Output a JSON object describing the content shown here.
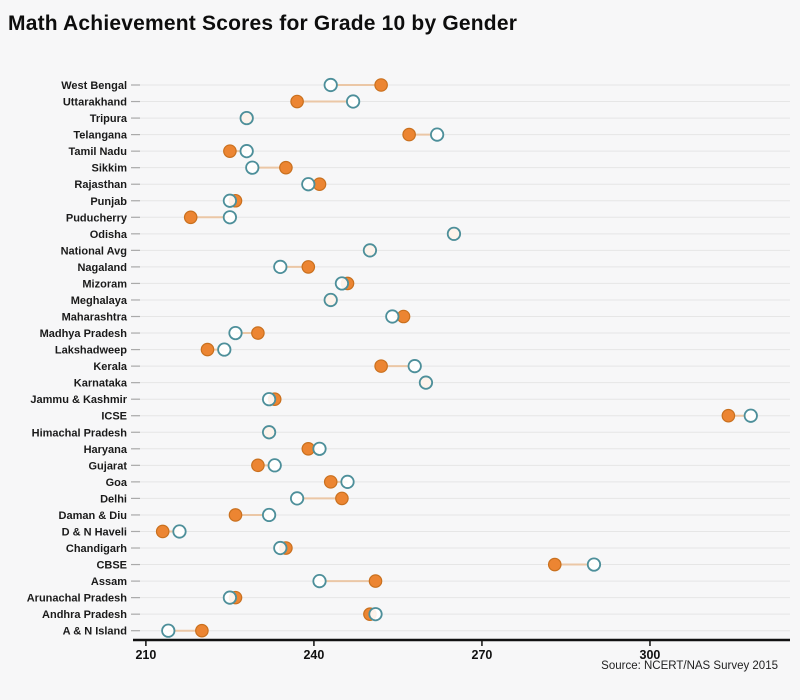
{
  "title": "Math Achievement Scores for Grade 10 by Gender",
  "source": "Source: NCERT/NAS Survey 2015",
  "chart_data": {
    "type": "scatter",
    "subtype": "dumbbell-dot-plot",
    "orientation": "horizontal",
    "title": "Math Achievement Scores for Grade 10 by Gender",
    "xlabel": "",
    "ylabel": "",
    "legend": "none",
    "grid": "horizontal-gridlines",
    "x_ticks": [
      210,
      240,
      270,
      300
    ],
    "xlim": [
      207.7,
      325
    ],
    "categories": [
      "West Bengal",
      "Uttarakhand",
      "Tripura",
      "Telangana",
      "Tamil Nadu",
      "Sikkim",
      "Rajasthan",
      "Punjab",
      "Puducherry",
      "Odisha",
      "National Avg",
      "Nagaland",
      "Mizoram",
      "Meghalaya",
      "Maharashtra",
      "Madhya Pradesh",
      "Lakshadweep",
      "Kerala",
      "Karnataka",
      "Jammu & Kashmir",
      "ICSE",
      "Himachal Pradesh",
      "Haryana",
      "Gujarat",
      "Goa",
      "Delhi",
      "Daman & Diu",
      "D & N Haveli",
      "Chandigarh",
      "CBSE",
      "Assam",
      "Arunachal Pradesh",
      "Andhra Pradesh",
      "A & N Island"
    ],
    "series": [
      {
        "name": "orange-filled-dot",
        "fill": "#EC8532",
        "stroke": "#C9701E",
        "values": [
          252,
          237,
          228,
          257,
          225,
          235,
          241,
          226,
          218,
          265,
          250,
          239,
          246,
          243,
          256,
          230,
          221,
          252,
          260,
          233,
          314,
          232,
          239,
          230,
          243,
          245,
          226,
          213,
          235,
          283,
          251,
          226,
          250,
          220
        ]
      },
      {
        "name": "teal-open-dot",
        "fill": "rgba(255,255,255,0.9)",
        "stroke": "#4D8F9A",
        "values": [
          243,
          247,
          228,
          262,
          228,
          229,
          239,
          225,
          225,
          265,
          250,
          234,
          245,
          243,
          254,
          226,
          224,
          258,
          260,
          232,
          318,
          232,
          241,
          233,
          246,
          237,
          232,
          216,
          234,
          290,
          241,
          225,
          251,
          214
        ]
      }
    ],
    "connector_color": "#EBC7A6",
    "background_color": "#F7F7F8",
    "gridline_color": "#E6E6E6",
    "axis_color": "#111111",
    "axis_tick_color": "#AAAAAA"
  },
  "layout_note": "dot plot, categories on y-axis, no legend shown"
}
